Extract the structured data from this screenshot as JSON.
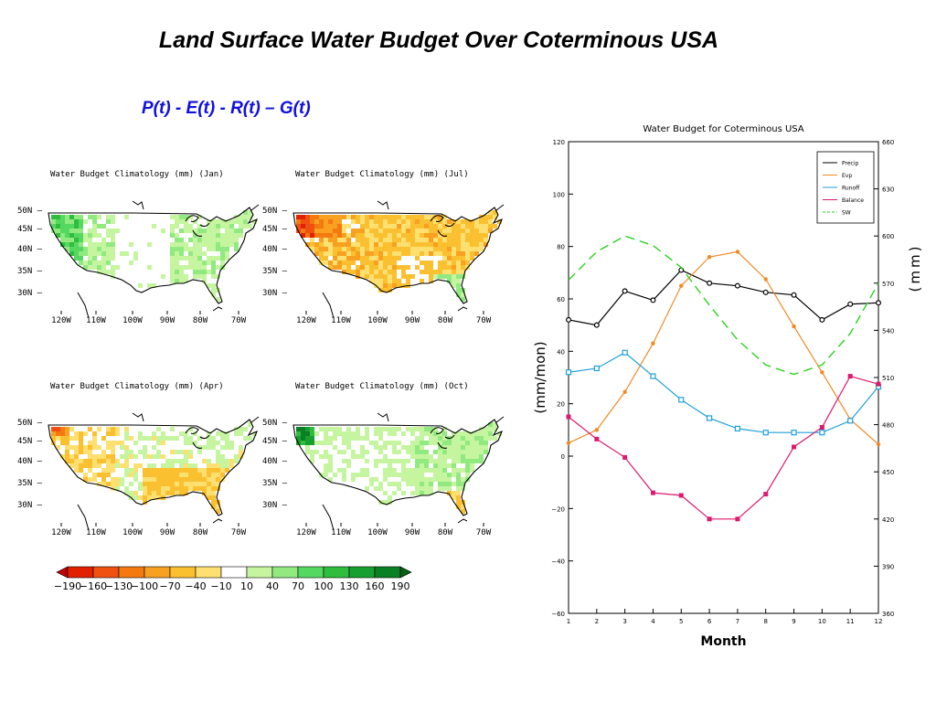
{
  "header": {
    "title": "Land Surface Water Budget Over Coterminous USA",
    "equation": "P(t) - E(t) - R(t) – G(t)"
  },
  "maps": [
    {
      "title": "Water Budget Climatology (mm) (Jan)",
      "pattern": "jan"
    },
    {
      "title": "Water Budget Climatology (mm) (Jul)",
      "pattern": "jul"
    },
    {
      "title": "Water Budget Climatology (mm) (Apr)",
      "pattern": "apr"
    },
    {
      "title": "Water Budget Climatology (mm) (Oct)",
      "pattern": "oct"
    }
  ],
  "map_axes": {
    "lat_labels": [
      "50N",
      "45N",
      "40N",
      "35N",
      "30N"
    ],
    "lon_labels": [
      "120W",
      "110W",
      "100W",
      "90W",
      "80W",
      "70W"
    ]
  },
  "colorbar": {
    "labels": [
      "-190",
      "-160",
      "-130",
      "-100",
      "-70",
      "-40",
      "-10",
      "10",
      "40",
      "70",
      "100",
      "130",
      "160",
      "190"
    ],
    "colors": [
      "#c00000",
      "#e02000",
      "#f05010",
      "#f47a10",
      "#f8a020",
      "#fbc030",
      "#fde070",
      "#ffffff",
      "#c6f5a0",
      "#90ea80",
      "#55d860",
      "#2ebd3e",
      "#17a030",
      "#0a8025",
      "#046018"
    ]
  },
  "chart_data": {
    "type": "line",
    "title": "Water Budget for Coterminous USA",
    "xlabel": "Month",
    "ylabel": "(mm/mon)",
    "y2label": "(mm)",
    "x": [
      1,
      2,
      3,
      4,
      5,
      6,
      7,
      8,
      9,
      10,
      11,
      12
    ],
    "ylim": [
      -60,
      120
    ],
    "y2lim": [
      360,
      660
    ],
    "yticks": [
      -60,
      -40,
      -20,
      0,
      20,
      40,
      60,
      80,
      100,
      120
    ],
    "y2ticks": [
      360,
      390,
      420,
      450,
      480,
      510,
      540,
      570,
      600,
      630,
      660
    ],
    "legend_position": "top-right",
    "series": [
      {
        "name": "Precip",
        "color": "#000000",
        "marker": "diamond",
        "dash": "",
        "axis": "left",
        "values": [
          52,
          50,
          63,
          59.5,
          71,
          66,
          65,
          62.5,
          61.5,
          52,
          58,
          58.5
        ]
      },
      {
        "name": "Evp",
        "color": "#f08a24",
        "marker": "circle",
        "dash": "",
        "axis": "left",
        "values": [
          5,
          10,
          24.5,
          43,
          65,
          76,
          78,
          67.5,
          49.5,
          32,
          14,
          4.5
        ]
      },
      {
        "name": "Runoff",
        "color": "#1ea0dc",
        "marker": "square-open",
        "dash": "",
        "axis": "left",
        "values": [
          32,
          33.5,
          39.5,
          30.5,
          21.5,
          14.5,
          10.5,
          9,
          9,
          9,
          13.5,
          26.5
        ]
      },
      {
        "name": "Balance",
        "color": "#dc1a6e",
        "marker": "square",
        "dash": "",
        "axis": "left",
        "values": [
          15,
          6.5,
          -0.5,
          -14,
          -15,
          -24,
          -24,
          -14.5,
          3.5,
          11,
          30.5,
          27.5
        ]
      },
      {
        "name": "SW",
        "color": "#2ad21e",
        "marker": "none",
        "dash": "10,6",
        "axis": "right",
        "values": [
          572,
          590,
          600,
          594,
          580,
          556,
          534,
          518,
          512,
          518,
          538,
          570
        ]
      }
    ]
  }
}
